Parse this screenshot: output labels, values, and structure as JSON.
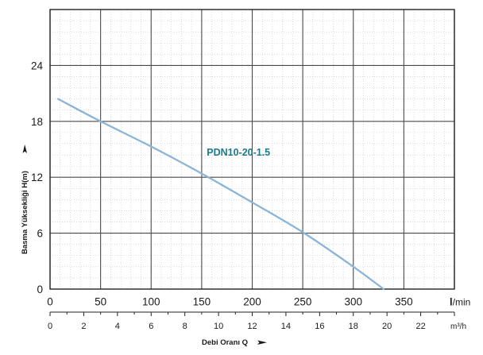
{
  "chart_data": {
    "type": "line",
    "title": "",
    "xlabel": "Debi Oranı Q",
    "ylabel": "Basma Yüksekliği H(m)",
    "x_unit": "l/min",
    "x_secondary_unit_text": "m³/h",
    "xlim": [
      0,
      400
    ],
    "ylim": [
      0,
      30
    ],
    "x_ticks": [
      0,
      50,
      100,
      150,
      200,
      250,
      300,
      350
    ],
    "x_tick_labels": [
      "0",
      "50",
      "100",
      "150",
      "200",
      "250",
      "300",
      "350"
    ],
    "x_secondary_ticks": [
      0,
      2,
      4,
      6,
      8,
      10,
      12,
      14,
      16,
      18,
      20,
      22
    ],
    "x_secondary_tick_labels": [
      "0",
      "2",
      "4",
      "6",
      "8",
      "10",
      "12",
      "14",
      "16",
      "18",
      "20",
      "22"
    ],
    "y_ticks": [
      0,
      6,
      12,
      18,
      24
    ],
    "y_tick_labels": [
      "0",
      "6",
      "12",
      "18",
      "24"
    ],
    "grid": true,
    "minor_grid": true,
    "series": [
      {
        "name": "PDN10-20-1.5",
        "color": "#8cb4d8",
        "label_color": "#1c7a8a",
        "x": [
          8,
          50,
          100,
          150,
          200,
          250,
          300,
          330
        ],
        "y": [
          20.4,
          18.0,
          15.3,
          12.4,
          9.3,
          6.1,
          2.4,
          0
        ]
      }
    ]
  }
}
